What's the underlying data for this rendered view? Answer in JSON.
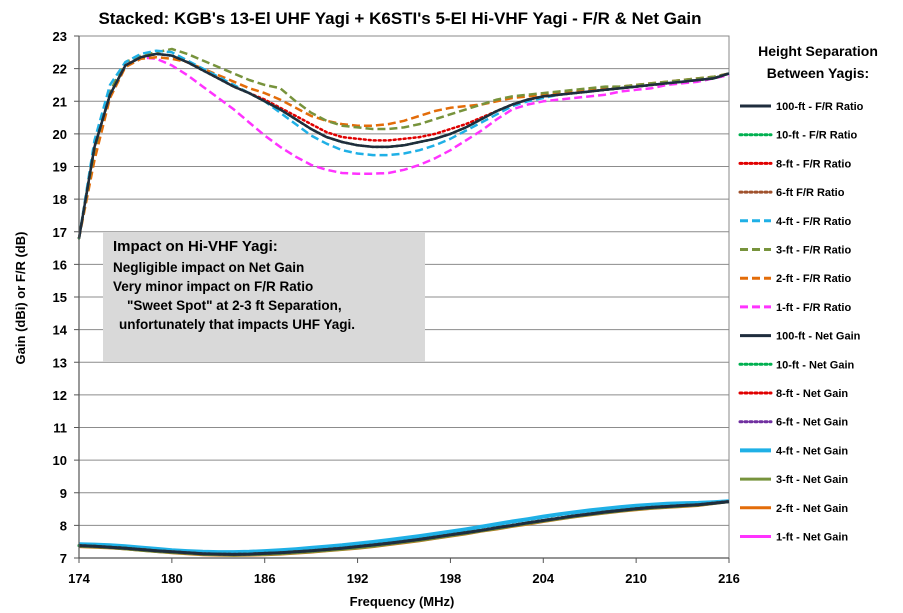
{
  "chart_data": {
    "type": "line",
    "title": "Stacked: KGB's 13-El UHF Yagi + K6STI's 5-El Hi-VHF Yagi - F/R & Net Gain",
    "xlabel": "Frequency (MHz)",
    "ylabel": "Gain (dBi) or F/R (dB)",
    "xlim": [
      174,
      216
    ],
    "ylim": [
      7,
      23
    ],
    "x_ticks": [
      "174",
      "180",
      "186",
      "192",
      "198",
      "204",
      "210",
      "216"
    ],
    "y_ticks": [
      "7",
      "8",
      "9",
      "10",
      "11",
      "12",
      "13",
      "14",
      "15",
      "16",
      "17",
      "18",
      "19",
      "20",
      "21",
      "22",
      "23"
    ],
    "grid": "horizontal",
    "legend_title": [
      "Height Separation",
      "Between Yagis:"
    ],
    "legend_position": "right",
    "x": [
      174,
      175,
      176,
      177,
      178,
      179,
      180,
      181,
      182,
      183,
      184,
      185,
      186,
      187,
      188,
      189,
      190,
      191,
      192,
      193,
      194,
      195,
      196,
      197,
      198,
      199,
      200,
      201,
      202,
      203,
      204,
      205,
      206,
      207,
      208,
      209,
      210,
      211,
      212,
      213,
      214,
      215,
      216
    ],
    "series": [
      {
        "name": "100-ft - F/R Ratio",
        "color": "#1f2d3d",
        "dash": "solid",
        "width": 2.5,
        "values": [
          16.8,
          19.6,
          21.2,
          22.1,
          22.35,
          22.45,
          22.4,
          22.2,
          21.95,
          21.7,
          21.45,
          21.25,
          21.0,
          20.75,
          20.45,
          20.15,
          19.9,
          19.75,
          19.65,
          19.6,
          19.6,
          19.65,
          19.75,
          19.85,
          20.0,
          20.2,
          20.45,
          20.7,
          20.9,
          21.05,
          21.15,
          21.2,
          21.25,
          21.3,
          21.35,
          21.4,
          21.45,
          21.5,
          21.55,
          21.6,
          21.65,
          21.7,
          21.85
        ]
      },
      {
        "name": "10-ft - F/R Ratio",
        "color": "#00b050",
        "dash": "dot",
        "width": 2.5,
        "values": [
          16.8,
          19.6,
          21.2,
          22.1,
          22.35,
          22.45,
          22.4,
          22.2,
          21.95,
          21.7,
          21.45,
          21.25,
          21.0,
          20.75,
          20.45,
          20.15,
          19.9,
          19.75,
          19.65,
          19.6,
          19.6,
          19.65,
          19.75,
          19.85,
          20.0,
          20.2,
          20.45,
          20.7,
          20.9,
          21.05,
          21.15,
          21.2,
          21.25,
          21.3,
          21.35,
          21.4,
          21.45,
          21.5,
          21.55,
          21.6,
          21.65,
          21.7,
          21.85
        ]
      },
      {
        "name": "8-ft - F/R Ratio",
        "color": "#e00000",
        "dash": "dot",
        "width": 2.5,
        "values": [
          16.8,
          19.6,
          21.2,
          22.1,
          22.35,
          22.45,
          22.4,
          22.2,
          21.95,
          21.7,
          21.45,
          21.25,
          21.05,
          20.8,
          20.55,
          20.3,
          20.05,
          19.9,
          19.85,
          19.8,
          19.8,
          19.85,
          19.9,
          20.0,
          20.15,
          20.3,
          20.5,
          20.7,
          20.9,
          21.05,
          21.15,
          21.2,
          21.25,
          21.3,
          21.35,
          21.4,
          21.45,
          21.5,
          21.55,
          21.6,
          21.65,
          21.7,
          21.85
        ]
      },
      {
        "name": "6-ft F/R Ratio",
        "color": "#a0522d",
        "dash": "dot",
        "width": 2.5,
        "values": [
          16.8,
          19.6,
          21.2,
          22.1,
          22.35,
          22.45,
          22.4,
          22.2,
          21.95,
          21.7,
          21.45,
          21.25,
          21.0,
          20.75,
          20.45,
          20.15,
          19.9,
          19.75,
          19.65,
          19.6,
          19.6,
          19.65,
          19.75,
          19.85,
          20.0,
          20.2,
          20.45,
          20.7,
          20.9,
          21.05,
          21.15,
          21.2,
          21.25,
          21.3,
          21.35,
          21.4,
          21.45,
          21.5,
          21.55,
          21.6,
          21.65,
          21.7,
          21.85
        ]
      },
      {
        "name": "4-ft - F/R Ratio",
        "color": "#1fb0e6",
        "dash": "dash",
        "width": 2.5,
        "values": [
          16.8,
          19.8,
          21.5,
          22.2,
          22.45,
          22.55,
          22.5,
          22.25,
          22.0,
          21.75,
          21.5,
          21.25,
          21.0,
          20.65,
          20.3,
          19.95,
          19.7,
          19.5,
          19.4,
          19.35,
          19.35,
          19.4,
          19.5,
          19.65,
          19.85,
          20.1,
          20.35,
          20.6,
          20.85,
          21.0,
          21.1,
          21.2,
          21.25,
          21.3,
          21.35,
          21.4,
          21.45,
          21.5,
          21.55,
          21.6,
          21.65,
          21.7,
          21.85
        ]
      },
      {
        "name": "3-ft - F/R Ratio",
        "color": "#77933c",
        "dash": "dash",
        "width": 2.5,
        "values": [
          16.8,
          19.5,
          21.3,
          22.2,
          22.4,
          22.5,
          22.6,
          22.45,
          22.25,
          22.05,
          21.85,
          21.65,
          21.5,
          21.4,
          21.0,
          20.65,
          20.4,
          20.25,
          20.2,
          20.15,
          20.15,
          20.2,
          20.3,
          20.45,
          20.6,
          20.75,
          20.9,
          21.05,
          21.15,
          21.2,
          21.25,
          21.3,
          21.35,
          21.4,
          21.45,
          21.45,
          21.5,
          21.55,
          21.6,
          21.65,
          21.7,
          21.75,
          21.85
        ]
      },
      {
        "name": "2-ft - F/R Ratio",
        "color": "#e36c09",
        "dash": "dash",
        "width": 2.5,
        "values": [
          16.8,
          19.2,
          21.1,
          22.05,
          22.3,
          22.35,
          22.3,
          22.2,
          22.0,
          21.8,
          21.6,
          21.4,
          21.25,
          21.05,
          20.8,
          20.55,
          20.4,
          20.3,
          20.25,
          20.25,
          20.3,
          20.4,
          20.55,
          20.7,
          20.8,
          20.85,
          20.9,
          21.0,
          21.1,
          21.15,
          21.2,
          21.25,
          21.3,
          21.35,
          21.4,
          21.45,
          21.5,
          21.55,
          21.6,
          21.65,
          21.7,
          21.75,
          21.85
        ]
      },
      {
        "name": "1-ft - F/R Ratio",
        "color": "#ff33ff",
        "dash": "dash",
        "width": 2.5,
        "values": [
          16.8,
          19.4,
          21.3,
          22.1,
          22.35,
          22.3,
          22.1,
          21.8,
          21.45,
          21.1,
          20.75,
          20.35,
          19.95,
          19.6,
          19.3,
          19.05,
          18.9,
          18.8,
          18.78,
          18.78,
          18.8,
          18.9,
          19.05,
          19.25,
          19.5,
          19.8,
          20.1,
          20.45,
          20.75,
          20.9,
          21.0,
          21.05,
          21.1,
          21.15,
          21.2,
          21.3,
          21.35,
          21.4,
          21.5,
          21.55,
          21.6,
          21.7,
          21.8
        ]
      },
      {
        "name": "100-ft - Net Gain",
        "color": "#1f2d3d",
        "dash": "solid",
        "width": 3,
        "values": [
          7.38,
          7.36,
          7.33,
          7.3,
          7.26,
          7.22,
          7.19,
          7.16,
          7.13,
          7.12,
          7.11,
          7.12,
          7.14,
          7.16,
          7.19,
          7.22,
          7.26,
          7.3,
          7.35,
          7.4,
          7.45,
          7.51,
          7.57,
          7.64,
          7.71,
          7.78,
          7.85,
          7.93,
          8.0,
          8.08,
          8.15,
          8.22,
          8.29,
          8.35,
          8.41,
          8.46,
          8.51,
          8.55,
          8.58,
          8.61,
          8.63,
          8.68,
          8.73
        ]
      },
      {
        "name": "10-ft - Net Gain",
        "color": "#00b050",
        "dash": "dot",
        "width": 3,
        "values": [
          7.38,
          7.36,
          7.33,
          7.3,
          7.26,
          7.22,
          7.19,
          7.16,
          7.13,
          7.12,
          7.11,
          7.12,
          7.14,
          7.16,
          7.19,
          7.22,
          7.26,
          7.3,
          7.35,
          7.4,
          7.45,
          7.51,
          7.57,
          7.64,
          7.71,
          7.78,
          7.85,
          7.93,
          8.0,
          8.08,
          8.15,
          8.22,
          8.29,
          8.35,
          8.41,
          8.46,
          8.51,
          8.55,
          8.58,
          8.61,
          8.63,
          8.68,
          8.73
        ]
      },
      {
        "name": "8-ft - Net Gain",
        "color": "#e00000",
        "dash": "dot",
        "width": 3,
        "values": [
          7.38,
          7.36,
          7.33,
          7.3,
          7.26,
          7.22,
          7.19,
          7.16,
          7.13,
          7.12,
          7.11,
          7.12,
          7.14,
          7.16,
          7.19,
          7.22,
          7.26,
          7.3,
          7.35,
          7.4,
          7.45,
          7.51,
          7.57,
          7.64,
          7.71,
          7.78,
          7.85,
          7.93,
          8.0,
          8.08,
          8.15,
          8.22,
          8.29,
          8.35,
          8.41,
          8.46,
          8.51,
          8.55,
          8.58,
          8.61,
          8.63,
          8.68,
          8.73
        ]
      },
      {
        "name": "6-ft - Net Gain",
        "color": "#7030a0",
        "dash": "dot",
        "width": 3,
        "values": [
          7.38,
          7.36,
          7.33,
          7.3,
          7.26,
          7.22,
          7.19,
          7.16,
          7.13,
          7.12,
          7.11,
          7.12,
          7.14,
          7.16,
          7.19,
          7.22,
          7.26,
          7.3,
          7.35,
          7.4,
          7.45,
          7.51,
          7.57,
          7.64,
          7.71,
          7.78,
          7.85,
          7.93,
          8.0,
          8.08,
          8.15,
          8.22,
          8.29,
          8.35,
          8.41,
          8.46,
          8.51,
          8.55,
          8.58,
          8.61,
          8.63,
          8.68,
          8.73
        ]
      },
      {
        "name": "4-ft - Net Gain",
        "color": "#1fb0e6",
        "dash": "solid",
        "width": 4,
        "values": [
          7.42,
          7.41,
          7.39,
          7.36,
          7.32,
          7.28,
          7.24,
          7.21,
          7.19,
          7.18,
          7.18,
          7.19,
          7.21,
          7.24,
          7.27,
          7.31,
          7.35,
          7.39,
          7.44,
          7.49,
          7.55,
          7.61,
          7.67,
          7.74,
          7.81,
          7.88,
          7.96,
          8.04,
          8.12,
          8.19,
          8.27,
          8.34,
          8.4,
          8.46,
          8.51,
          8.56,
          8.6,
          8.63,
          8.66,
          8.68,
          8.69,
          8.71,
          8.74
        ]
      },
      {
        "name": "3-ft - Net Gain",
        "color": "#77933c",
        "dash": "solid",
        "width": 3,
        "values": [
          7.36,
          7.34,
          7.32,
          7.28,
          7.24,
          7.2,
          7.17,
          7.14,
          7.11,
          7.1,
          7.09,
          7.1,
          7.11,
          7.13,
          7.16,
          7.19,
          7.23,
          7.27,
          7.31,
          7.36,
          7.42,
          7.48,
          7.54,
          7.61,
          7.68,
          7.75,
          7.83,
          7.9,
          7.98,
          8.05,
          8.13,
          8.2,
          8.27,
          8.33,
          8.39,
          8.44,
          8.49,
          8.53,
          8.56,
          8.59,
          8.62,
          8.67,
          8.73
        ]
      },
      {
        "name": "2-ft - Net Gain",
        "color": "#e36c09",
        "dash": "solid",
        "width": 3,
        "values": [
          7.35,
          7.33,
          7.31,
          7.28,
          7.24,
          7.2,
          7.16,
          7.13,
          7.1,
          7.09,
          7.08,
          7.09,
          7.1,
          7.12,
          7.15,
          7.18,
          7.22,
          7.26,
          7.3,
          7.35,
          7.41,
          7.47,
          7.53,
          7.6,
          7.67,
          7.74,
          7.82,
          7.89,
          7.97,
          8.04,
          8.12,
          8.19,
          8.26,
          8.32,
          8.38,
          8.43,
          8.48,
          8.52,
          8.55,
          8.58,
          8.61,
          8.67,
          8.73
        ]
      },
      {
        "name": "1-ft - Net Gain",
        "color": "#ff33ff",
        "dash": "solid",
        "width": 3,
        "values": [
          7.37,
          7.35,
          7.32,
          7.29,
          7.25,
          7.21,
          7.18,
          7.15,
          7.12,
          7.11,
          7.1,
          7.11,
          7.12,
          7.14,
          7.17,
          7.2,
          7.24,
          7.28,
          7.32,
          7.37,
          7.43,
          7.49,
          7.55,
          7.62,
          7.69,
          7.76,
          7.84,
          7.91,
          7.99,
          8.06,
          8.14,
          8.21,
          8.28,
          8.34,
          8.4,
          8.45,
          8.5,
          8.54,
          8.57,
          8.6,
          8.63,
          8.68,
          8.74
        ]
      }
    ]
  },
  "annotation": {
    "title": "Impact on Hi-VHF Yagi:",
    "lines": [
      "Negligible impact on Net Gain",
      "Very minor impact on F/R Ratio",
      "\"Sweet Spot\" at 2-3 ft Separation,",
      "unfortunately that impacts UHF Yagi."
    ]
  }
}
